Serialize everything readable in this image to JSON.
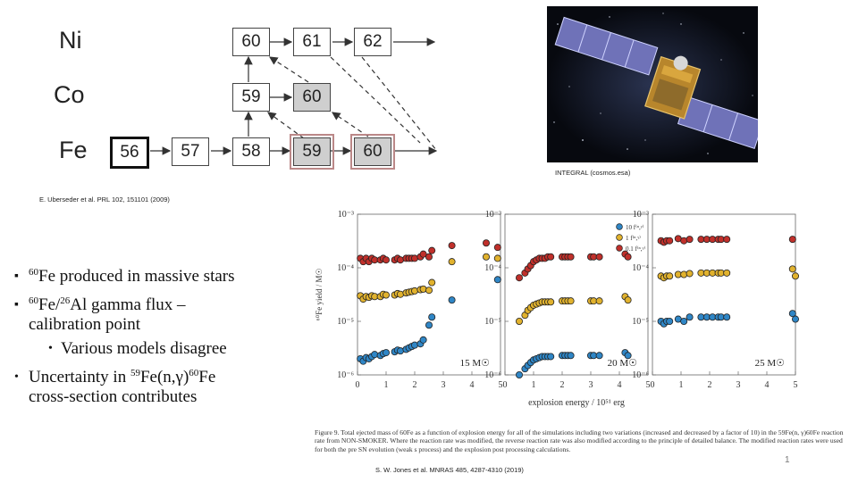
{
  "nuclide_chart": {
    "elements": [
      "Ni",
      "Co",
      "Fe"
    ],
    "ni_boxes": [
      "60",
      "61",
      "62"
    ],
    "co_boxes": [
      "59",
      "60"
    ],
    "fe_boxes": [
      "56",
      "57",
      "58",
      "59",
      "60"
    ]
  },
  "satellite": {
    "credit": "INTEGRAL (cosmos.esa)"
  },
  "references": {
    "chart_ref": "E. Uberseder et al. PRL 102, 151101 (2009)",
    "paper_ref": "S. W. Jones et al. MNRAS 485, 4287-4310 (2019)"
  },
  "bullets": {
    "b1_mass": "60",
    "b1_text": "Fe produced in massive stars",
    "b2_mass1": "60",
    "b2_mid": "Fe/",
    "b2_mass2": "26",
    "b2_end": "Al gamma flux –",
    "b2_line2": "calibration point",
    "sub1": "Various models disagree",
    "b3_pre": "Uncertainty in ",
    "b3_mass1": "59",
    "b3_mid": "Fe(n,γ)",
    "b3_mass2": "60",
    "b3_end": "Fe",
    "b3_line2": "cross-section contributes"
  },
  "slide_number": "1",
  "figure": {
    "caption": "Figure 9. Total ejected mass of 60Fe as a function of explosion energy for all of the simulations including two variations (increased and decreased by a factor of 10) in the 59Fe(n, γ)60Fe reaction rate from NON-SMOKER. Where the reaction rate was modified, the reverse reaction rate was also modified according to the principle of detailed balance. The modified reaction rates were used for both the pre SN evolution (weak s process) and the explosion post processing calculations.",
    "colors": {
      "red": "#c0302b",
      "yellow": "#e1b22e",
      "blue": "#2f86c6"
    }
  },
  "chart_data": {
    "type": "scatter",
    "ylabel": "⁶⁰Fe yield / M☉",
    "xlabel": "explosion energy / 10⁵¹ erg",
    "yscale": "log",
    "ylim": [
      1e-06,
      0.001
    ],
    "xlim": [
      0,
      5
    ],
    "y_ticks": [
      "10⁻⁶",
      "10⁻⁵",
      "10⁻⁴",
      "10⁻³"
    ],
    "x_ticks": [
      "0",
      "1",
      "2",
      "3",
      "4",
      "5"
    ],
    "legend": [
      "10 f⁽ⁿ,ᵞ⁾",
      "1 f⁽ⁿ,ᵞ⁾",
      "0.1 f⁽ⁿ,ᵞ⁾"
    ],
    "panels": [
      {
        "label": "15 M☉",
        "series": [
          {
            "color": "red",
            "x": [
              0.1,
              0.2,
              0.3,
              0.4,
              0.5,
              0.6,
              0.8,
              0.9,
              1.0,
              1.3,
              1.4,
              1.5,
              1.7,
              1.8,
              1.9,
              2.0,
              2.2,
              2.3,
              2.5,
              2.6,
              3.3,
              4.5,
              4.9
            ],
            "y": [
              0.00015,
              0.00013,
              0.00015,
              0.00013,
              0.00015,
              0.00014,
              0.00014,
              0.00015,
              0.00014,
              0.00014,
              0.00015,
              0.00014,
              0.00015,
              0.00015,
              0.00015,
              0.00015,
              0.00016,
              0.00018,
              0.00016,
              0.00021,
              0.00026,
              0.00029,
              0.00024
            ]
          },
          {
            "color": "yellow",
            "x": [
              0.1,
              0.2,
              0.3,
              0.4,
              0.5,
              0.6,
              0.8,
              0.9,
              1.0,
              1.3,
              1.4,
              1.5,
              1.7,
              1.8,
              1.9,
              2.0,
              2.2,
              2.3,
              2.5,
              2.6,
              3.3,
              4.5,
              4.9
            ],
            "y": [
              3e-05,
              2.6e-05,
              2.9e-05,
              2.8e-05,
              3e-05,
              2.9e-05,
              2.9e-05,
              3.2e-05,
              3.1e-05,
              3.1e-05,
              3.3e-05,
              3.2e-05,
              3.4e-05,
              3.5e-05,
              3.6e-05,
              3.7e-05,
              3.9e-05,
              4e-05,
              3.8e-05,
              5.3e-05,
              0.00013,
              0.00016,
              0.00015
            ]
          },
          {
            "color": "blue",
            "x": [
              0.1,
              0.2,
              0.3,
              0.4,
              0.5,
              0.6,
              0.8,
              0.9,
              1.0,
              1.3,
              1.4,
              1.5,
              1.7,
              1.8,
              1.9,
              2.0,
              2.2,
              2.3,
              2.5,
              2.6,
              3.3,
              4.9
            ],
            "y": [
              2e-06,
              1.8e-06,
              2.1e-06,
              2e-06,
              2.2e-06,
              2.4e-06,
              2.3e-06,
              2.5e-06,
              2.6e-06,
              2.7e-06,
              2.9e-06,
              2.8e-06,
              3e-06,
              3.2e-06,
              3.4e-06,
              3.6e-06,
              3.8e-06,
              4.5e-06,
              8.5e-06,
              1.2e-05,
              2.5e-05,
              6e-05
            ]
          }
        ]
      },
      {
        "label": "20 M☉",
        "series": [
          {
            "color": "red",
            "x": [
              0.5,
              0.7,
              0.8,
              0.9,
              1.0,
              1.1,
              1.2,
              1.3,
              1.4,
              1.5,
              1.6,
              2.0,
              2.1,
              2.2,
              2.3,
              3.0,
              3.1,
              3.3,
              4.2,
              4.3
            ],
            "y": [
              6.5e-05,
              8e-05,
              9.5e-05,
              0.00011,
              0.00013,
              0.00014,
              0.00015,
              0.00015,
              0.00015,
              0.00016,
              0.00016,
              0.00016,
              0.00016,
              0.00016,
              0.00016,
              0.00016,
              0.00016,
              0.00016,
              0.00018,
              0.00016
            ]
          },
          {
            "color": "yellow",
            "x": [
              0.5,
              0.7,
              0.8,
              0.9,
              1.0,
              1.1,
              1.2,
              1.3,
              1.4,
              1.5,
              1.6,
              2.0,
              2.1,
              2.2,
              2.3,
              3.0,
              3.1,
              3.3,
              4.2,
              4.3
            ],
            "y": [
              1e-05,
              1.3e-05,
              1.6e-05,
              1.8e-05,
              2e-05,
              2.1e-05,
              2.2e-05,
              2.3e-05,
              2.3e-05,
              2.3e-05,
              2.3e-05,
              2.4e-05,
              2.4e-05,
              2.4e-05,
              2.4e-05,
              2.4e-05,
              2.4e-05,
              2.4e-05,
              2.9e-05,
              2.5e-05
            ]
          },
          {
            "color": "blue",
            "x": [
              0.5,
              0.7,
              0.8,
              0.9,
              1.0,
              1.1,
              1.2,
              1.3,
              1.4,
              1.5,
              1.6,
              2.0,
              2.1,
              2.2,
              2.3,
              3.0,
              3.1,
              3.3,
              4.2,
              4.3
            ],
            "y": [
              1e-06,
              1.3e-06,
              1.5e-06,
              1.7e-06,
              1.9e-06,
              2e-06,
              2.1e-06,
              2.2e-06,
              2.2e-06,
              2.2e-06,
              2.2e-06,
              2.3e-06,
              2.3e-06,
              2.3e-06,
              2.3e-06,
              2.3e-06,
              2.3e-06,
              2.3e-06,
              2.6e-06,
              2.3e-06
            ]
          }
        ]
      },
      {
        "label": "25 M☉",
        "series": [
          {
            "color": "red",
            "x": [
              0.3,
              0.4,
              0.5,
              0.6,
              0.9,
              1.1,
              1.3,
              1.7,
              1.9,
              2.1,
              2.3,
              2.4,
              2.6,
              4.9
            ],
            "y": [
              0.00032,
              0.0003,
              0.00032,
              0.00032,
              0.00035,
              0.00032,
              0.00034,
              0.00034,
              0.00034,
              0.00034,
              0.00034,
              0.00034,
              0.00034,
              0.00034
            ]
          },
          {
            "color": "yellow",
            "x": [
              0.3,
              0.4,
              0.5,
              0.6,
              0.9,
              1.1,
              1.3,
              1.7,
              1.9,
              2.1,
              2.3,
              2.4,
              2.6,
              4.9,
              5.0
            ],
            "y": [
              7e-05,
              6.5e-05,
              7e-05,
              7e-05,
              7.5e-05,
              7.5e-05,
              7.8e-05,
              8e-05,
              8e-05,
              8e-05,
              8e-05,
              8e-05,
              8e-05,
              9.5e-05,
              7e-05
            ]
          },
          {
            "color": "blue",
            "x": [
              0.3,
              0.4,
              0.5,
              0.6,
              0.9,
              1.1,
              1.3,
              1.7,
              1.9,
              2.1,
              2.3,
              2.4,
              2.6,
              4.9,
              5.0
            ],
            "y": [
              1e-05,
              9e-06,
              1e-05,
              1e-05,
              1.1e-05,
              1e-05,
              1.2e-05,
              1.2e-05,
              1.2e-05,
              1.2e-05,
              1.2e-05,
              1.2e-05,
              1.2e-05,
              1.4e-05,
              1.1e-05
            ]
          }
        ]
      }
    ]
  }
}
